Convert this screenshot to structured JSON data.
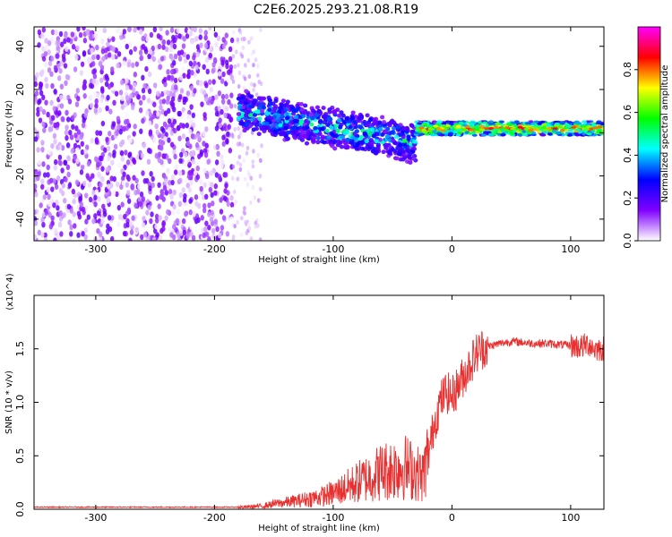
{
  "title": "C2E6.2025.293.21.08.R19",
  "chart_data": [
    {
      "type": "heatmap",
      "xlabel": "Height of straight line (km)",
      "ylabel": "Frequency (Hz)",
      "xlim": [
        -352,
        128
      ],
      "ylim": [
        -50,
        49
      ],
      "xticks": [
        -300,
        -200,
        -100,
        0,
        100
      ],
      "yticks": [
        -40,
        -20,
        0,
        20,
        40
      ],
      "colorbar": {
        "label": "Normalized spectral amplitude",
        "range": [
          0,
          1
        ],
        "ticks": [
          "0.0",
          "0.2",
          "0.4",
          "0.6",
          "0.8"
        ],
        "colors": [
          "#ffffff",
          "#8000ff",
          "#0000ff",
          "#00ffff",
          "#00ff00",
          "#ffff00",
          "#ff0000",
          "#ff00ff"
        ]
      },
      "regions": [
        {
          "x": [
            -352,
            -185
          ],
          "freq": [
            -50,
            49
          ],
          "amplitude": "noise 0.0-0.15"
        },
        {
          "x": [
            -185,
            -160
          ],
          "freq": [
            -50,
            49
          ],
          "amplitude": "sparse 0.0-0.1"
        },
        {
          "x": [
            -180,
            -30
          ],
          "freq_center": [
            10,
            -5
          ],
          "spread": 10,
          "amplitude": "0.15-0.6"
        },
        {
          "x": [
            -30,
            128
          ],
          "freq_center": [
            2,
            2
          ],
          "spread": 2,
          "amplitude": "0.6-1.0"
        }
      ]
    },
    {
      "type": "line",
      "xlabel": "Height of straight line (km)",
      "ylabel": "SNR (10 * v/v)",
      "y_multiplier": "(x10^4)",
      "xlim": [
        -352,
        128
      ],
      "ylim": [
        0,
        2
      ],
      "xticks": [
        -300,
        -200,
        -100,
        0,
        100
      ],
      "yticks": [
        "0.0",
        "0.5",
        "1.0",
        "1.5"
      ],
      "series": [
        {
          "color": "#e83030",
          "x": [
            -352,
            -300,
            -250,
            -200,
            -175,
            -160,
            -150,
            -130,
            -110,
            -100,
            -90,
            -80,
            -70,
            -60,
            -50,
            -40,
            -30,
            -25,
            -20,
            -15,
            -10,
            -5,
            0,
            5,
            10,
            15,
            20,
            25,
            30,
            40,
            50,
            60,
            70,
            80,
            90,
            100,
            110,
            115,
            120,
            128
          ],
          "y": [
            0.02,
            0.02,
            0.02,
            0.02,
            0.02,
            0.03,
            0.05,
            0.08,
            0.12,
            0.15,
            0.2,
            0.25,
            0.3,
            0.35,
            0.38,
            0.4,
            0.35,
            0.3,
            0.5,
            0.8,
            1.0,
            1.1,
            1.05,
            1.15,
            1.25,
            1.35,
            1.45,
            1.5,
            1.52,
            1.55,
            1.57,
            1.56,
            1.55,
            1.55,
            1.54,
            1.53,
            1.52,
            1.55,
            1.5,
            1.5
          ]
        }
      ]
    }
  ]
}
